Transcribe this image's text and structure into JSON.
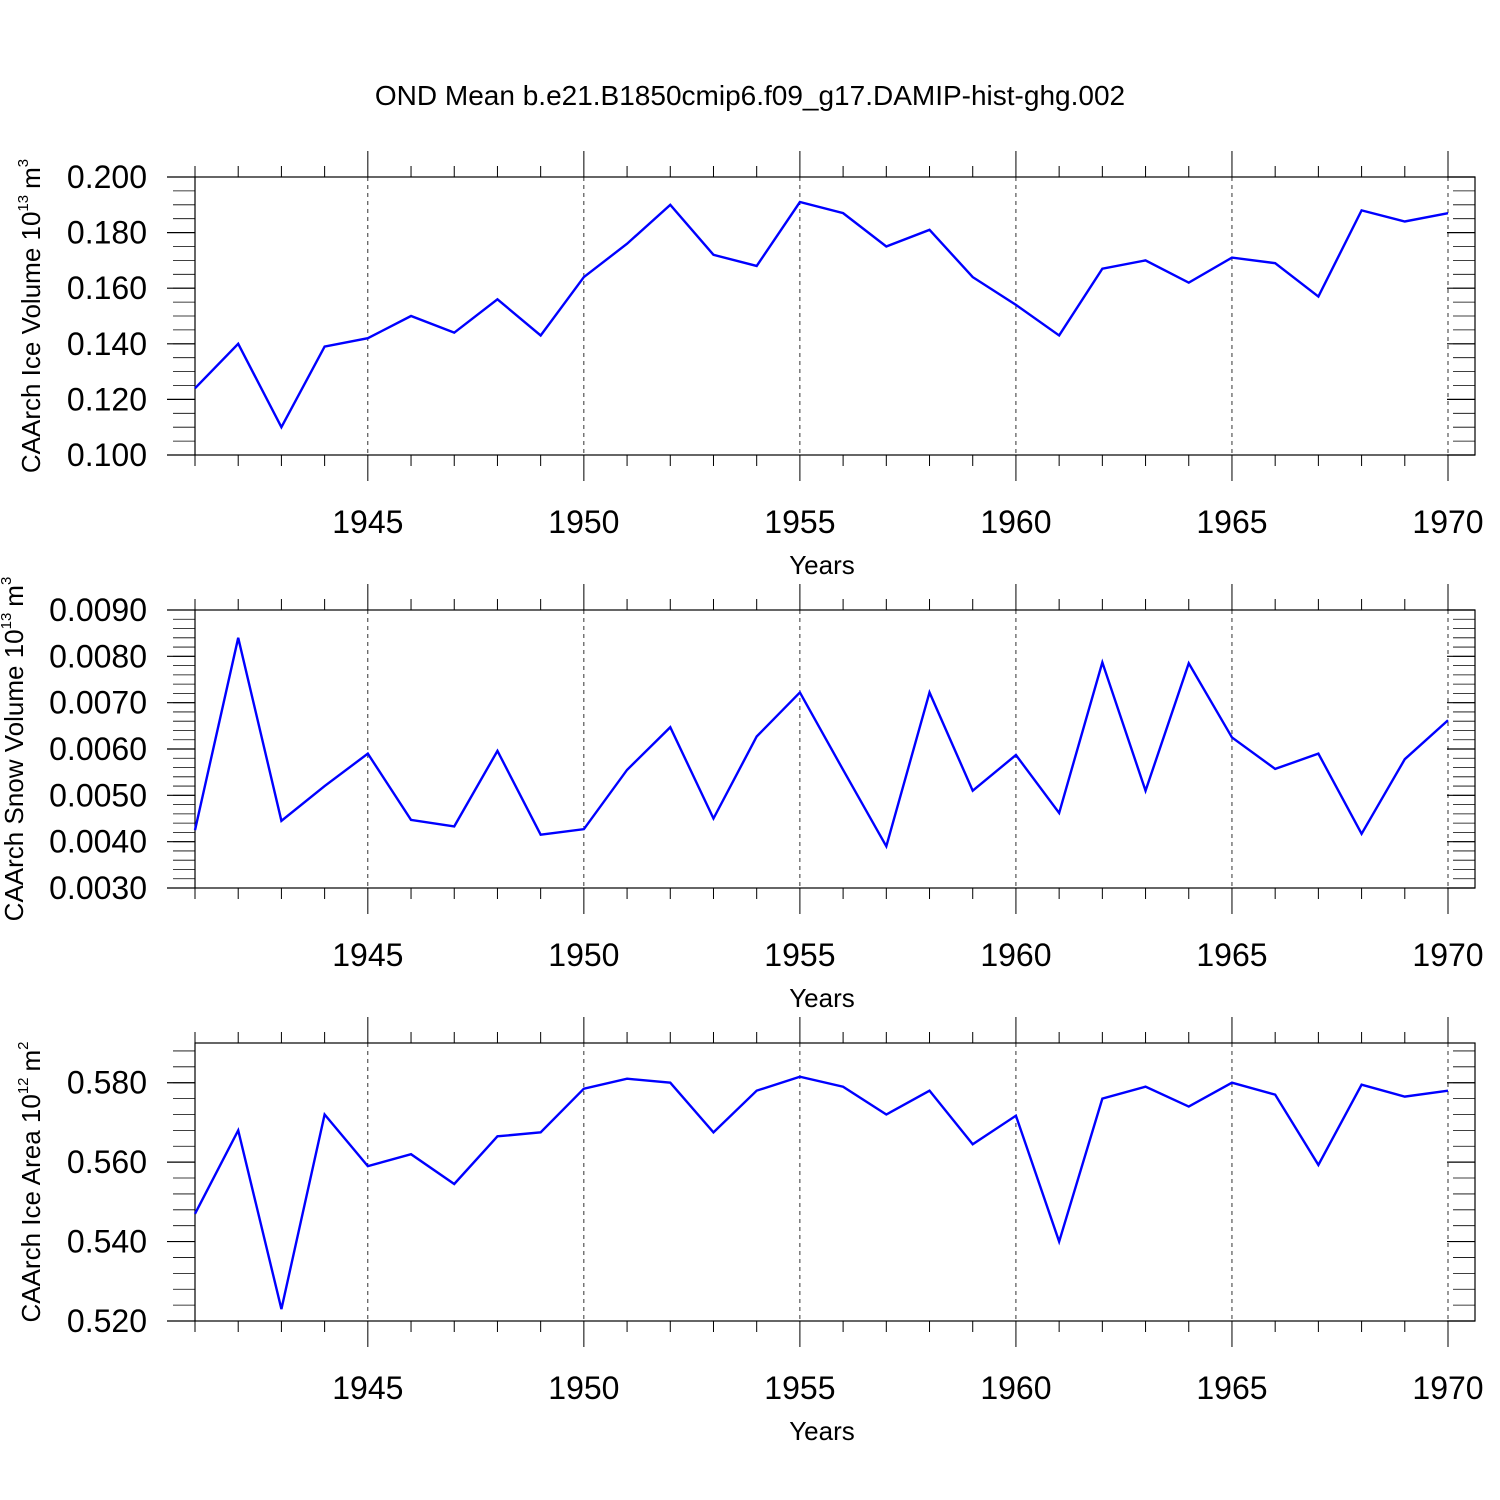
{
  "figure": {
    "title": "OND Mean b.e21.B1850cmip6.f09_g17.DAMIP-hist-ghg.002",
    "line_color": "#0000ff"
  },
  "chart_data": [
    {
      "type": "line",
      "title": "OND Mean b.e21.B1850cmip6.f09_g17.DAMIP-hist-ghg.002",
      "xlabel": "Years",
      "ylabel": "CAArch Ice Volume",
      "ylabel_unit_base": "10",
      "ylabel_unit_exp": "13",
      "ylabel_unit_dim": "m",
      "ylabel_unit_dim_exp": "3",
      "xlim": [
        1941,
        1970
      ],
      "ylim": [
        0.1,
        0.2
      ],
      "yticks": [
        0.1,
        0.12,
        0.14,
        0.16,
        0.18,
        0.2
      ],
      "ytick_labels": [
        "0.100",
        "0.120",
        "0.140",
        "0.160",
        "0.180",
        "0.200"
      ],
      "yminor_step": 0.005,
      "xticks": [
        1945,
        1950,
        1955,
        1960,
        1965,
        1970
      ],
      "xtick_labels": [
        "1945",
        "1950",
        "1955",
        "1960",
        "1965",
        "1970"
      ],
      "x": [
        1941,
        1942,
        1943,
        1944,
        1945,
        1946,
        1947,
        1948,
        1949,
        1950,
        1951,
        1952,
        1953,
        1954,
        1955,
        1956,
        1957,
        1958,
        1959,
        1960,
        1961,
        1962,
        1963,
        1964,
        1965,
        1966,
        1967,
        1968,
        1969,
        1970
      ],
      "series": [
        {
          "name": "CAArch Ice Volume",
          "values": [
            0.124,
            0.14,
            0.11,
            0.139,
            0.142,
            0.15,
            0.144,
            0.156,
            0.143,
            0.164,
            0.176,
            0.19,
            0.172,
            0.168,
            0.191,
            0.187,
            0.175,
            0.181,
            0.164,
            0.154,
            0.143,
            0.167,
            0.17,
            0.162,
            0.171,
            0.169,
            0.157,
            0.188,
            0.184,
            0.187
          ]
        }
      ]
    },
    {
      "type": "line",
      "xlabel": "Years",
      "ylabel": "CAArch Snow Volume",
      "ylabel_unit_base": "10",
      "ylabel_unit_exp": "13",
      "ylabel_unit_dim": "m",
      "ylabel_unit_dim_exp": "3",
      "xlim": [
        1941,
        1970
      ],
      "ylim": [
        0.003,
        0.009
      ],
      "yticks": [
        0.003,
        0.004,
        0.005,
        0.006,
        0.007,
        0.008,
        0.009
      ],
      "ytick_labels": [
        "0.0030",
        "0.0040",
        "0.0050",
        "0.0060",
        "0.0070",
        "0.0080",
        "0.0090"
      ],
      "yminor_step": 0.0002,
      "xticks": [
        1945,
        1950,
        1955,
        1960,
        1965,
        1970
      ],
      "xtick_labels": [
        "1945",
        "1950",
        "1955",
        "1960",
        "1965",
        "1970"
      ],
      "x": [
        1941,
        1942,
        1943,
        1944,
        1945,
        1946,
        1947,
        1948,
        1949,
        1950,
        1951,
        1952,
        1953,
        1954,
        1955,
        1956,
        1957,
        1958,
        1959,
        1960,
        1961,
        1962,
        1963,
        1964,
        1965,
        1966,
        1967,
        1968,
        1969,
        1970
      ],
      "series": [
        {
          "name": "CAArch Snow Volume",
          "values": [
            0.00425,
            0.0084,
            0.00445,
            0.0052,
            0.0059,
            0.00447,
            0.00433,
            0.00596,
            0.00415,
            0.00427,
            0.00555,
            0.00647,
            0.0045,
            0.00627,
            0.00722,
            0.00555,
            0.0039,
            0.00722,
            0.0051,
            0.00587,
            0.00462,
            0.00787,
            0.0051,
            0.00785,
            0.00625,
            0.00557,
            0.0059,
            0.00417,
            0.00578,
            0.00662
          ]
        }
      ]
    },
    {
      "type": "line",
      "xlabel": "Years",
      "ylabel": "CAArch Ice Area",
      "ylabel_unit_base": "10",
      "ylabel_unit_exp": "12",
      "ylabel_unit_dim": "m",
      "ylabel_unit_dim_exp": "2",
      "xlim": [
        1941,
        1970
      ],
      "ylim": [
        0.52,
        0.59
      ],
      "yticks": [
        0.52,
        0.54,
        0.56,
        0.58
      ],
      "ytick_labels": [
        "0.520",
        "0.540",
        "0.560",
        "0.580"
      ],
      "yminor_step": 0.004,
      "xticks": [
        1945,
        1950,
        1955,
        1960,
        1965,
        1970
      ],
      "xtick_labels": [
        "1945",
        "1950",
        "1955",
        "1960",
        "1965",
        "1970"
      ],
      "x": [
        1941,
        1942,
        1943,
        1944,
        1945,
        1946,
        1947,
        1948,
        1949,
        1950,
        1951,
        1952,
        1953,
        1954,
        1955,
        1956,
        1957,
        1958,
        1959,
        1960,
        1961,
        1962,
        1963,
        1964,
        1965,
        1966,
        1967,
        1968,
        1969,
        1970
      ],
      "series": [
        {
          "name": "CAArch Ice Area",
          "values": [
            0.547,
            0.568,
            0.523,
            0.572,
            0.559,
            0.562,
            0.5545,
            0.5665,
            0.5675,
            0.5785,
            0.581,
            0.58,
            0.5675,
            0.578,
            0.5815,
            0.579,
            0.572,
            0.578,
            0.5645,
            0.5717,
            0.54,
            0.576,
            0.579,
            0.574,
            0.58,
            0.577,
            0.5593,
            0.5795,
            0.5765,
            0.578
          ]
        }
      ]
    }
  ]
}
